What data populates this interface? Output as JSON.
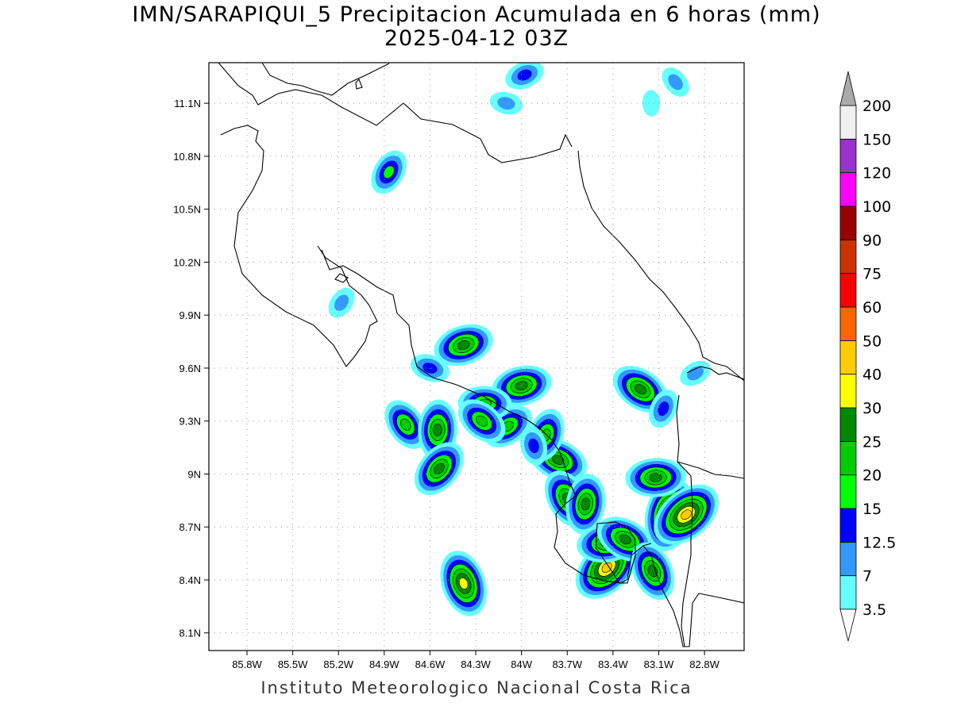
{
  "title": {
    "line1": "IMN/SARAPIQUI_5 Precipitacion Acumulada en 6 horas (mm)",
    "line2": "2025-04-12 03Z"
  },
  "footer": "Instituto Meteorologico Nacional Costa Rica",
  "map": {
    "lon_range": [
      -86.05,
      -82.54
    ],
    "lat_range": [
      8.0,
      11.33
    ],
    "lon_ticks": [
      -85.8,
      -85.5,
      -85.2,
      -84.9,
      -84.6,
      -84.3,
      -84.0,
      -83.7,
      -83.4,
      -83.1,
      -82.8
    ],
    "lon_tick_labels": [
      "85.8W",
      "85.5W",
      "85.2W",
      "84.9W",
      "84.6W",
      "84.3W",
      "84W",
      "83.7W",
      "83.4W",
      "83.1W",
      "82.8W"
    ],
    "lat_ticks": [
      8.1,
      8.4,
      8.7,
      9.0,
      9.3,
      9.6,
      9.9,
      10.2,
      10.5,
      10.8,
      11.1
    ],
    "lat_tick_labels": [
      "8.1N",
      "8.4N",
      "8.7N",
      "9N",
      "9.3N",
      "9.6N",
      "9.9N",
      "10.2N",
      "10.5N",
      "10.8N",
      "11.1N"
    ],
    "grid": true,
    "grid_style": "dotted"
  },
  "colorbar": {
    "levels": [
      "3.5",
      "7",
      "12.5",
      "15",
      "20",
      "25",
      "30",
      "40",
      "50",
      "60",
      "75",
      "90",
      "100",
      "120",
      "150",
      "200"
    ],
    "colors": [
      "#66ffff",
      "#3399ff",
      "#0000ff",
      "#00ff00",
      "#00cc00",
      "#008800",
      "#ffff00",
      "#ffcc00",
      "#ff6600",
      "#ff0000",
      "#cc3300",
      "#990000",
      "#ff00ff",
      "#9933cc",
      "#f0f0f0",
      "#aaaaaa"
    ],
    "color_semantics": [
      "cyan",
      "light-blue",
      "blue",
      "light-green",
      "green",
      "dark-green",
      "yellow",
      "gold",
      "orange",
      "red",
      "orange-red",
      "dark-red",
      "magenta",
      "purple",
      "white",
      "gray"
    ]
  },
  "precip_cells": [
    {
      "lon": -84.87,
      "lat": 10.71,
      "max": 15
    },
    {
      "lon": -83.98,
      "lat": 11.26,
      "max": 12.5
    },
    {
      "lon": -84.1,
      "lat": 11.1,
      "max": 7
    },
    {
      "lon": -82.99,
      "lat": 11.22,
      "max": 7
    },
    {
      "lon": -83.15,
      "lat": 11.1,
      "max": 3.5
    },
    {
      "lon": -85.18,
      "lat": 9.97,
      "max": 7
    },
    {
      "lon": -84.38,
      "lat": 9.73,
      "max": 25
    },
    {
      "lon": -84.6,
      "lat": 9.6,
      "max": 12.5
    },
    {
      "lon": -84.76,
      "lat": 9.28,
      "max": 20
    },
    {
      "lon": -84.55,
      "lat": 9.25,
      "max": 25
    },
    {
      "lon": -84.54,
      "lat": 9.03,
      "max": 25
    },
    {
      "lon": -84.0,
      "lat": 9.5,
      "max": 25
    },
    {
      "lon": -83.76,
      "lat": 9.08,
      "max": 25
    },
    {
      "lon": -83.7,
      "lat": 8.86,
      "max": 25
    },
    {
      "lon": -83.58,
      "lat": 8.83,
      "max": 25
    },
    {
      "lon": -83.44,
      "lat": 8.47,
      "max": 40
    },
    {
      "lon": -83.44,
      "lat": 8.61,
      "max": 25
    },
    {
      "lon": -83.32,
      "lat": 8.63,
      "max": 25
    },
    {
      "lon": -83.14,
      "lat": 8.45,
      "max": 25
    },
    {
      "lon": -83.03,
      "lat": 8.77,
      "max": 40
    },
    {
      "lon": -82.92,
      "lat": 8.77,
      "max": 40
    },
    {
      "lon": -83.12,
      "lat": 8.98,
      "max": 25
    },
    {
      "lon": -83.22,
      "lat": 9.48,
      "max": 25
    },
    {
      "lon": -84.38,
      "lat": 8.38,
      "max": 30
    },
    {
      "lon": -83.84,
      "lat": 9.22,
      "max": 20
    },
    {
      "lon": -84.09,
      "lat": 9.27,
      "max": 20
    },
    {
      "lon": -84.24,
      "lat": 9.4,
      "max": 20
    },
    {
      "lon": -84.26,
      "lat": 9.3,
      "max": 20
    },
    {
      "lon": -83.92,
      "lat": 9.16,
      "max": 12.5
    },
    {
      "lon": -83.07,
      "lat": 9.37,
      "max": 12.5
    },
    {
      "lon": -82.86,
      "lat": 9.57,
      "max": 7
    }
  ]
}
